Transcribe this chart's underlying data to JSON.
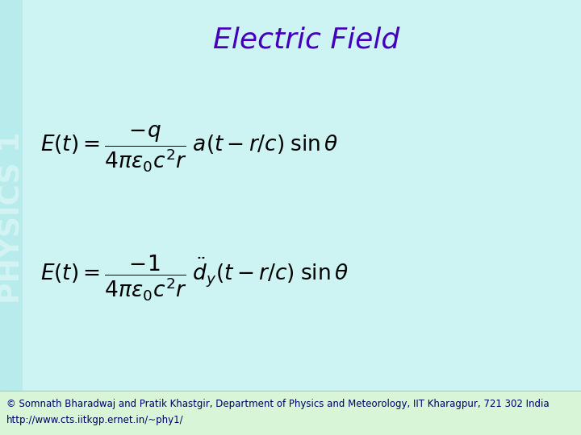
{
  "bg_color": "#cdf3f3",
  "sidebar_bg_color": "#b8ecec",
  "title": "Electric Field",
  "title_color": "#4400bb",
  "title_fontsize": 26,
  "eq1": "$E(t) = \\dfrac{-q}{4\\pi\\epsilon_0 c^2 r}\\; a(t - r/c)\\; \\sin\\theta$",
  "eq2": "$E(t) = \\dfrac{-1}{4\\pi\\epsilon_0 c^2 r}\\; \\ddot{d}_y(t - r/c)\\; \\sin\\theta$",
  "eq_color": "#000000",
  "eq1_fontsize": 19,
  "eq2_fontsize": 19,
  "sidebar_text": "PHYSICS 1",
  "sidebar_text_color": "#d8f5f5",
  "sidebar_text_fontsize": 26,
  "footer_bg_color": "#d8f5d8",
  "footer1": "© Somnath Bharadwaj and Pratik Khastgir, Department of Physics and Meteorology, IIT Kharagpur, 721 302 India",
  "footer2": "http://www.cts.iitkgp.ernet.in/~phy1/",
  "footer_color": "#000066",
  "footer_fontsize": 8.5
}
